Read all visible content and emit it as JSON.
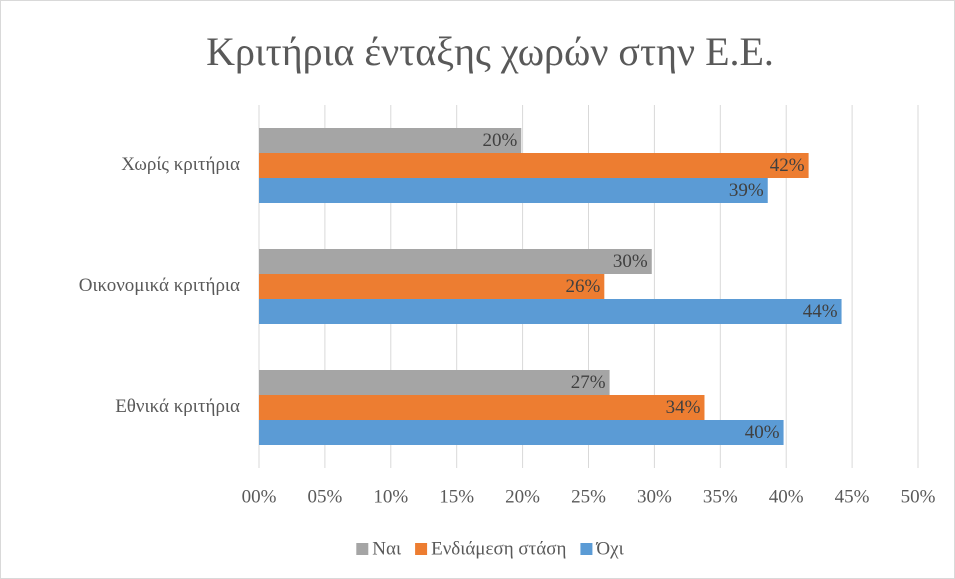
{
  "chart_data": {
    "type": "bar",
    "orientation": "horizontal",
    "title": "Κριτήρια ένταξης χωρών στην Ε.Ε.",
    "categories": [
      "Χωρίς κριτήρια",
      "Οικονομικά κριτήρια",
      "Εθνικά κριτήρια"
    ],
    "series": [
      {
        "name": "Ναι",
        "color": "#a5a5a5",
        "values": [
          19.9,
          29.8,
          26.6
        ],
        "value_labels": [
          "20%",
          "30%",
          "27%"
        ]
      },
      {
        "name": "Ενδιάμεση στάση",
        "color": "#ed7d31",
        "values": [
          41.7,
          26.2,
          33.8
        ],
        "value_labels": [
          "42%",
          "26%",
          "34%"
        ]
      },
      {
        "name": "Όχι",
        "color": "#5b9bd5",
        "values": [
          38.6,
          44.2,
          39.8
        ],
        "value_labels": [
          "39%",
          "44%",
          "40%"
        ]
      }
    ],
    "xlim": [
      0,
      50
    ],
    "xticks": [
      {
        "value": 0,
        "label": "00%"
      },
      {
        "value": 5,
        "label": "05%"
      },
      {
        "value": 10,
        "label": "10%"
      },
      {
        "value": 15,
        "label": "15%"
      },
      {
        "value": 20,
        "label": "20%"
      },
      {
        "value": 25,
        "label": "25%"
      },
      {
        "value": 30,
        "label": "30%"
      },
      {
        "value": 35,
        "label": "35%"
      },
      {
        "value": 40,
        "label": "40%"
      },
      {
        "value": 45,
        "label": "45%"
      },
      {
        "value": 50,
        "label": "50%"
      }
    ],
    "grid": true,
    "legend": "bottom"
  }
}
